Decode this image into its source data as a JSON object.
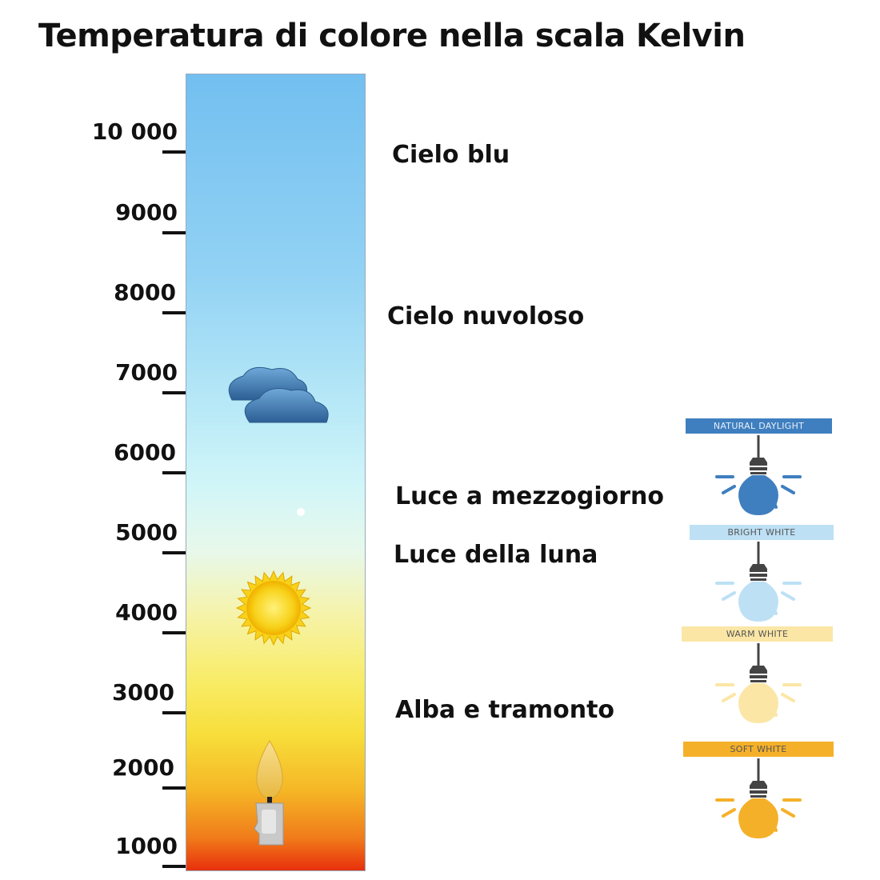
{
  "title": "Temperatura di colore nella scala Kelvin",
  "scale": {
    "ticks": [
      "10 000",
      "9000",
      "8000",
      "7000",
      "6000",
      "5000",
      "4000",
      "3000",
      "2000",
      "1000"
    ]
  },
  "sources": [
    {
      "label": "Cielo blu"
    },
    {
      "label": "Cielo nuvoloso"
    },
    {
      "label": "Luce a mezzogiorno"
    },
    {
      "label": "Luce della luna"
    },
    {
      "label": "Alba e tramonto"
    }
  ],
  "icons": [
    "cloud-icon",
    "sun-icon",
    "candle-icon",
    "moon-dot-icon",
    "light-bulb-icon"
  ],
  "bulbs": [
    {
      "label": "NATURAL DAYLIGHT",
      "banner_color": "#3f7fbf",
      "text_color": "#e8f0f8",
      "bulb_color": "#3f7fbf"
    },
    {
      "label": "BRIGHT WHITE",
      "banner_color": "#bde0f5",
      "text_color": "#555555",
      "bulb_color": "#bde0f5"
    },
    {
      "label": "WARM WHITE",
      "banner_color": "#fbe6a6",
      "text_color": "#555555",
      "bulb_color": "#fbe6a6"
    },
    {
      "label": "SOFT WHITE",
      "banner_color": "#f5b02a",
      "text_color": "#555555",
      "bulb_color": "#f5b02a"
    }
  ]
}
